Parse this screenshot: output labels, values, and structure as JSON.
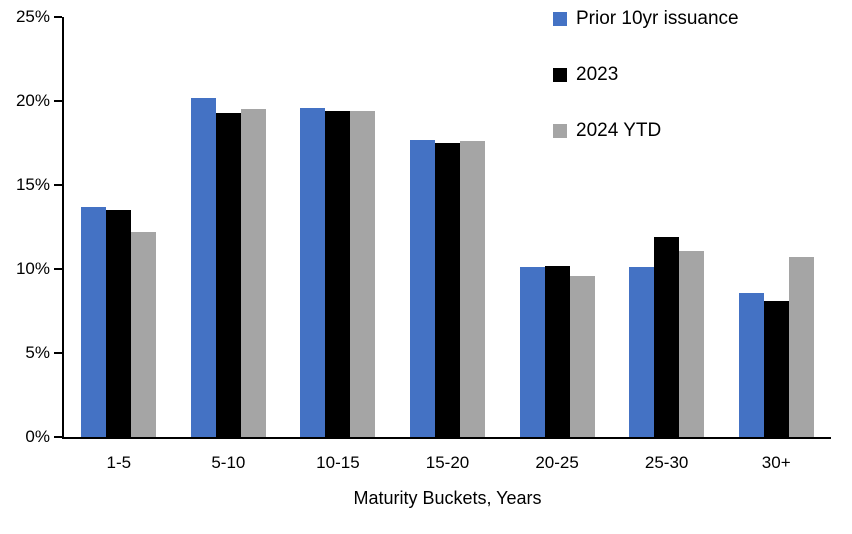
{
  "chart_data": {
    "type": "bar",
    "title": "",
    "xlabel": "Maturity Buckets, Years",
    "ylabel": "",
    "ylim": [
      0,
      25
    ],
    "grid": false,
    "legend_position": "top-right",
    "y_ticks": [
      {
        "value": 0,
        "label": "0%"
      },
      {
        "value": 5,
        "label": "5%"
      },
      {
        "value": 10,
        "label": "10%"
      },
      {
        "value": 15,
        "label": "15%"
      },
      {
        "value": 20,
        "label": "20%"
      },
      {
        "value": 25,
        "label": "25%"
      }
    ],
    "categories": [
      "1-5",
      "5-10",
      "10-15",
      "15-20",
      "20-25",
      "25-30",
      "30+"
    ],
    "series": [
      {
        "name": "Prior 10yr issuance",
        "color": "#4472C4",
        "values": [
          13.7,
          20.2,
          19.6,
          17.7,
          10.1,
          10.1,
          8.6
        ]
      },
      {
        "name": "2023",
        "color": "#000000",
        "values": [
          13.5,
          19.3,
          19.4,
          17.5,
          10.2,
          11.9,
          8.1
        ]
      },
      {
        "name": "2024 YTD",
        "color": "#A5A5A5",
        "values": [
          12.2,
          19.5,
          19.4,
          17.6,
          9.6,
          11.1,
          10.7
        ]
      }
    ]
  }
}
